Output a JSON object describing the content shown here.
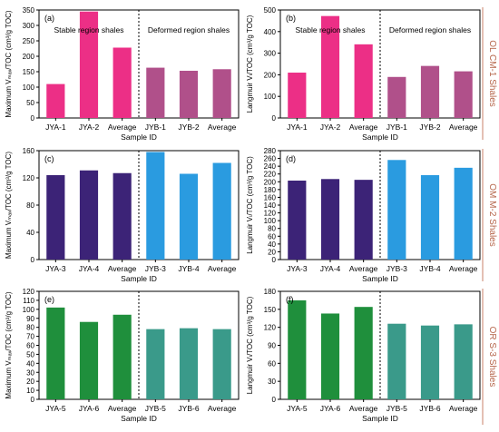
{
  "figure": {
    "sample_id_label": "Sample ID",
    "stable_label": "Stable region shales",
    "deformed_label": "Deformed region shales",
    "row_labels": [
      "OL CM-1 Shales",
      "OM M-2 Shales",
      "OR S-3 Shales"
    ],
    "ylabel_left": "Maximum Vₘₐₓ/TOC (cm³/g TOC)",
    "ylabel_right": "Langmuir Vₗ/TOC (cm³/g TOC)",
    "colors": {
      "row1_stable": "#ec2f86",
      "row1_deformed": "#b0508a",
      "row2_stable": "#3c2377",
      "row2_deformed": "#2a9be0",
      "row3_stable": "#1f8f3c",
      "row3_deformed": "#3a9a8a",
      "row_label_line": "#c8826a",
      "row_label_text": "#b5654a"
    }
  },
  "chart_data": [
    {
      "panel": "(a)",
      "type": "bar",
      "row": 0,
      "col": 0,
      "categories": [
        "JYA-1",
        "JYA-2",
        "Average",
        "JYB-1",
        "JYB-2",
        "Average"
      ],
      "values": [
        110,
        345,
        228,
        163,
        153,
        158
      ],
      "ylim": [
        0,
        350
      ],
      "yticks": [
        0,
        50,
        100,
        150,
        200,
        250,
        300,
        350
      ],
      "ylabel": "Maximum Vₘₐₓ/TOC (cm³/g TOC)",
      "xlabel": "Sample ID"
    },
    {
      "panel": "(b)",
      "type": "bar",
      "row": 0,
      "col": 1,
      "categories": [
        "JYA-1",
        "JYA-2",
        "Average",
        "JYB-1",
        "JYB-2",
        "Average"
      ],
      "values": [
        210,
        472,
        341,
        190,
        241,
        216
      ],
      "ylim": [
        0,
        500
      ],
      "yticks": [
        0,
        100,
        200,
        300,
        400,
        500
      ],
      "ylabel": "Langmuir Vₗ/TOC (cm³/g TOC)",
      "xlabel": "Sample ID"
    },
    {
      "panel": "(c)",
      "type": "bar",
      "row": 1,
      "col": 0,
      "categories": [
        "JYA-3",
        "JYA-4",
        "Average",
        "JYB-3",
        "JYB-4",
        "Average"
      ],
      "values": [
        124,
        131,
        127,
        158,
        126,
        142
      ],
      "ylim": [
        0,
        160
      ],
      "yticks": [
        0,
        40,
        80,
        120,
        160
      ],
      "ylabel": "Maximum Vₘₐₓ/TOC (cm³/g TOC)",
      "xlabel": "Sample ID"
    },
    {
      "panel": "(d)",
      "type": "bar",
      "row": 1,
      "col": 1,
      "categories": [
        "JYA-3",
        "JYA-4",
        "Average",
        "JYB-3",
        "JYB-4",
        "Average"
      ],
      "values": [
        203,
        207,
        205,
        256,
        217,
        236
      ],
      "ylim": [
        0,
        280
      ],
      "yticks": [
        0,
        20,
        40,
        60,
        80,
        100,
        120,
        140,
        160,
        180,
        200,
        220,
        240,
        260,
        280
      ],
      "ylabel": "Langmuir Vₗ/TOC (cm³/g TOC)",
      "xlabel": "Sample ID"
    },
    {
      "panel": "(e)",
      "type": "bar",
      "row": 2,
      "col": 0,
      "categories": [
        "JYA-5",
        "JYA-6",
        "Average",
        "JYB-5",
        "JYB-6",
        "Average"
      ],
      "values": [
        102,
        86,
        94,
        78,
        79,
        78
      ],
      "ylim": [
        0,
        120
      ],
      "yticks": [
        0,
        10,
        20,
        30,
        40,
        50,
        60,
        70,
        80,
        90,
        100,
        110,
        120
      ],
      "ylabel": "Maximum Vₘₐₓ/TOC (cm³/g TOC)",
      "xlabel": "Sample ID"
    },
    {
      "panel": "(f)",
      "type": "bar",
      "row": 2,
      "col": 1,
      "categories": [
        "JYA-5",
        "JYA-6",
        "Average",
        "JYB-5",
        "JYB-6",
        "Average"
      ],
      "values": [
        165,
        143,
        154,
        126,
        123,
        125
      ],
      "ylim": [
        0,
        180
      ],
      "yticks": [
        0,
        30,
        60,
        90,
        120,
        150,
        180
      ],
      "ylabel": "Langmuir Vₗ/TOC (cm³/g TOC)",
      "xlabel": "Sample ID"
    }
  ]
}
